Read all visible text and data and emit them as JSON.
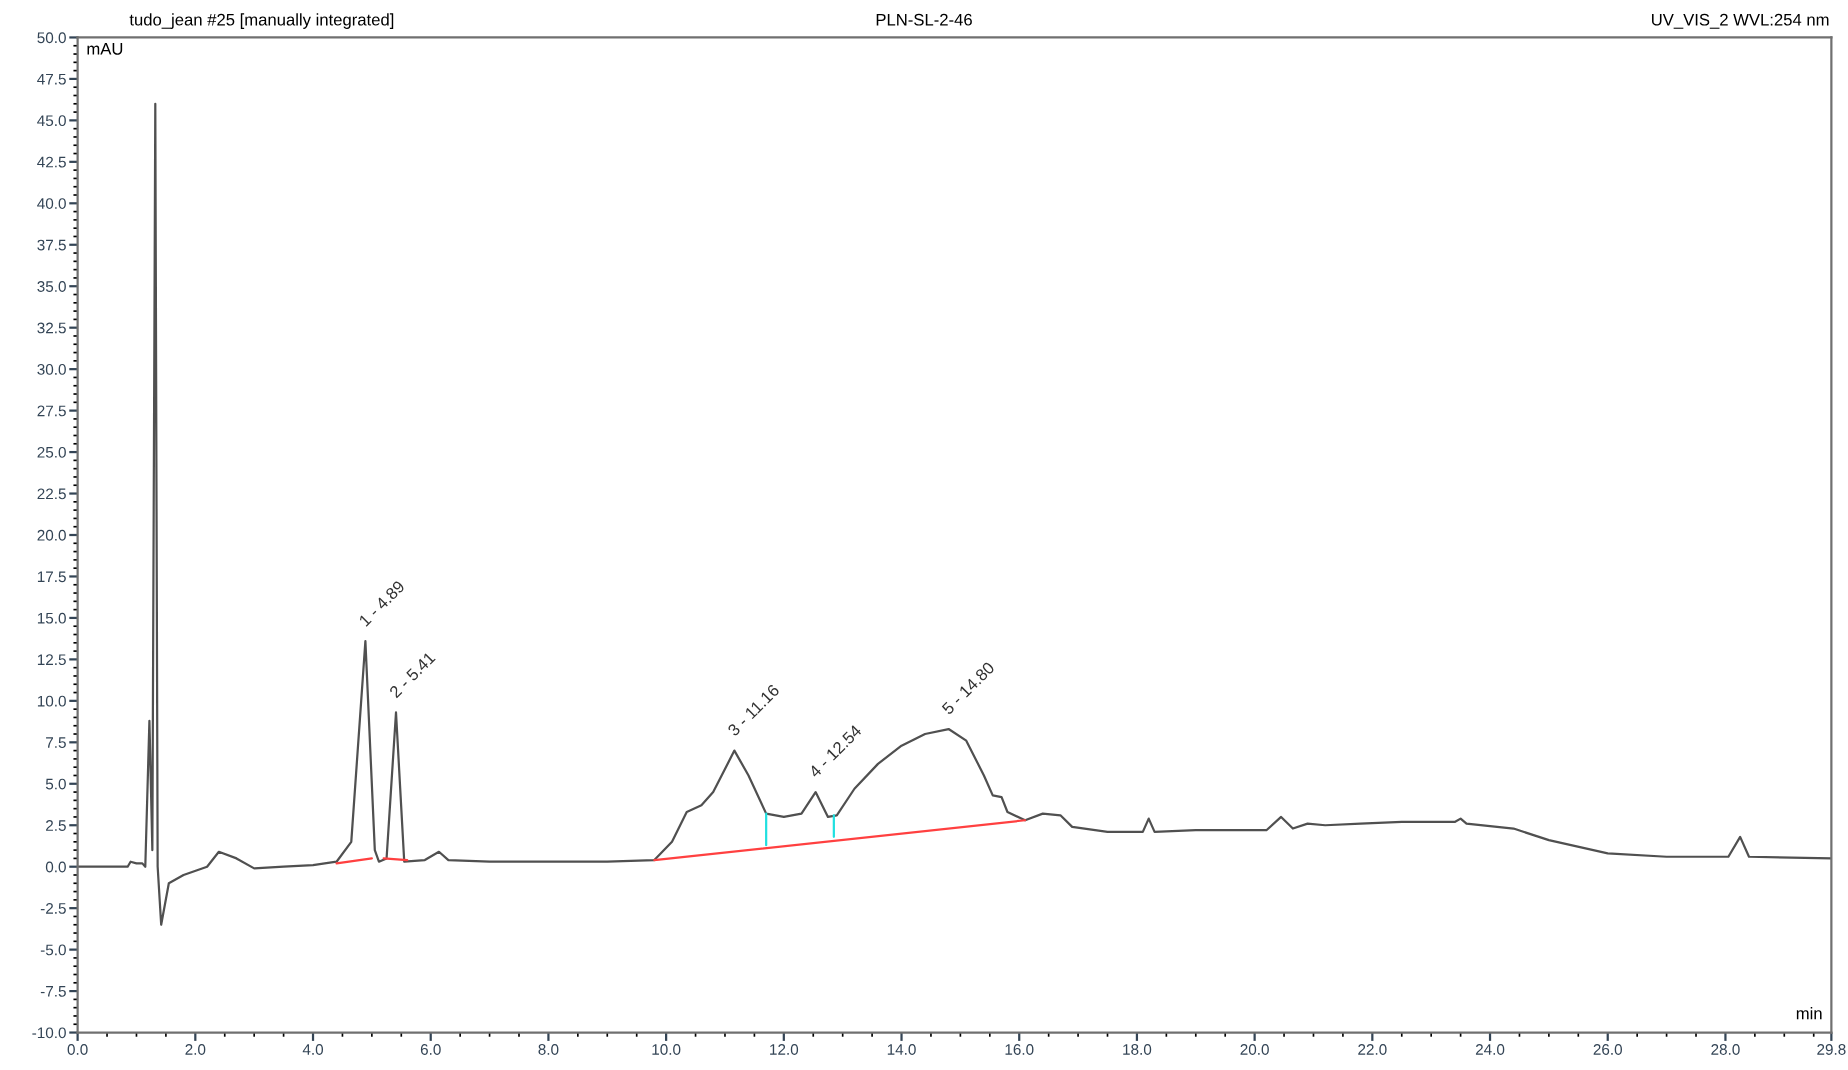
{
  "chart_data": {
    "type": "line",
    "title": "tudo_jean #25 [manually integrated]",
    "subtitle": "PLN-SL-2-46",
    "xlabel": "min",
    "ylabel": "mAU",
    "annotations": [
      "UV_VIS_2 WVL:254 nm",
      {
        "text": "1 - 4.89",
        "x": 4.89,
        "y": 13.6
      },
      {
        "text": "2 - 5.41",
        "x": 5.41,
        "y": 9.3
      },
      {
        "text": "3 - 11.16",
        "x": 11.16,
        "y": 7.0
      },
      {
        "text": "4 - 12.54",
        "x": 12.54,
        "y": 4.5
      },
      {
        "text": "5 - 14.80",
        "x": 14.8,
        "y": 8.3
      }
    ],
    "series": [
      {
        "color": "#505050",
        "x": [
          0,
          0.85,
          0.9,
          1.0,
          1.1,
          1.15,
          1.22,
          1.27,
          1.32,
          1.36,
          1.42,
          1.55,
          1.8,
          2.2,
          2.4,
          2.7,
          3.0,
          3.5,
          4.0,
          4.4,
          4.65,
          4.89,
          5.05,
          5.12,
          5.25,
          5.41,
          5.55,
          5.9,
          6.14,
          6.3,
          7.0,
          8.0,
          9.0,
          9.8,
          10.1,
          10.35,
          10.6,
          10.8,
          11.16,
          11.4,
          11.7,
          12.0,
          12.3,
          12.54,
          12.75,
          12.9,
          13.2,
          13.6,
          14.0,
          14.4,
          14.8,
          15.1,
          15.4,
          15.55,
          15.7,
          15.8,
          16.1,
          16.4,
          16.7,
          16.9,
          17.5,
          18.1,
          18.2,
          18.3,
          19.0,
          20.2,
          20.45,
          20.65,
          20.9,
          21.2,
          21.8,
          22.5,
          23.4,
          23.5,
          23.6,
          24.4,
          25.0,
          26.0,
          27.0,
          28.05,
          28.25,
          28.4,
          29.8
        ],
        "values": [
          0,
          0.0,
          0.3,
          0.2,
          0.2,
          0.0,
          8.8,
          1.0,
          46.0,
          0.0,
          -3.5,
          -1.0,
          -0.5,
          0.0,
          0.9,
          0.5,
          -0.1,
          0.0,
          0.1,
          0.3,
          1.5,
          13.6,
          1.0,
          0.3,
          0.5,
          9.3,
          0.3,
          0.4,
          0.9,
          0.4,
          0.3,
          0.3,
          0.3,
          0.4,
          1.5,
          3.3,
          3.7,
          4.5,
          7.0,
          5.5,
          3.2,
          3.0,
          3.2,
          4.5,
          3.0,
          3.1,
          4.7,
          6.2,
          7.3,
          8.0,
          8.3,
          7.6,
          5.5,
          4.3,
          4.2,
          3.3,
          2.8,
          3.2,
          3.1,
          2.4,
          2.1,
          2.1,
          2.9,
          2.1,
          2.2,
          2.2,
          3.0,
          2.3,
          2.6,
          2.5,
          2.6,
          2.7,
          2.7,
          2.9,
          2.6,
          2.3,
          1.6,
          0.8,
          0.6,
          0.6,
          1.8,
          0.6,
          0.5
        ]
      },
      {
        "color": "#ff4040",
        "x": [
          4.4,
          5.0
        ],
        "values": [
          0.2,
          0.5
        ]
      },
      {
        "color": "#ff4040",
        "x": [
          5.2,
          5.6
        ],
        "values": [
          0.5,
          0.4
        ]
      },
      {
        "color": "#ff4040",
        "x": [
          9.8,
          16.1
        ],
        "values": [
          0.4,
          2.8
        ]
      },
      {
        "color": "#20e0e0",
        "x": [
          11.7,
          11.7
        ],
        "values": [
          1.3,
          3.2
        ]
      },
      {
        "color": "#20e0e0",
        "x": [
          12.85,
          12.85
        ],
        "values": [
          1.8,
          3.1
        ]
      }
    ],
    "xlim": [
      0,
      29.8
    ],
    "ylim": [
      -10,
      50
    ],
    "xticks": [
      {
        "value": 0,
        "label": "0.0"
      },
      {
        "value": 2,
        "label": "2.0"
      },
      {
        "value": 4,
        "label": "4.0"
      },
      {
        "value": 6,
        "label": "6.0"
      },
      {
        "value": 8,
        "label": "8.0"
      },
      {
        "value": 10,
        "label": "10.0"
      },
      {
        "value": 12,
        "label": "12.0"
      },
      {
        "value": 14,
        "label": "14.0"
      },
      {
        "value": 16,
        "label": "16.0"
      },
      {
        "value": 18,
        "label": "18.0"
      },
      {
        "value": 20,
        "label": "20.0"
      },
      {
        "value": 22,
        "label": "22.0"
      },
      {
        "value": 24,
        "label": "24.0"
      },
      {
        "value": 26,
        "label": "26.0"
      },
      {
        "value": 28,
        "label": "28.0"
      },
      29.8
    ],
    "yticks": [
      {
        "value": -10,
        "label": "-10.0"
      },
      -7.5,
      {
        "value": -5,
        "label": "-5.0"
      },
      -2.5,
      {
        "value": 0,
        "label": "0.0"
      },
      2.5,
      {
        "value": 5,
        "label": "5.0"
      },
      7.5,
      {
        "value": 10,
        "label": "10.0"
      },
      12.5,
      {
        "value": 15,
        "label": "15.0"
      },
      17.5,
      {
        "value": 20,
        "label": "20.0"
      },
      22.5,
      {
        "value": 25,
        "label": "25.0"
      },
      27.5,
      {
        "value": 30,
        "label": "30.0"
      },
      32.5,
      {
        "value": 35,
        "label": "35.0"
      },
      37.5,
      {
        "value": 40,
        "label": "40.0"
      },
      42.5,
      {
        "value": 45,
        "label": "45.0"
      },
      47.5,
      {
        "value": 50,
        "label": "50.0"
      }
    ],
    "grid": false,
    "legend": false,
    "marker": "none",
    "line_style": "solid"
  }
}
